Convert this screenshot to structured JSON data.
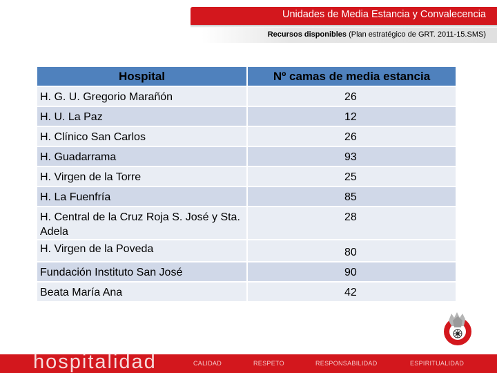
{
  "header": {
    "title": "Unidades de Media Estancia y Convalecencia",
    "subtitle_bold": "Recursos disponibles",
    "subtitle_rest": " (Plan estratégico de GRT. 2011-15.SMS)"
  },
  "table": {
    "col_hospital": "Hospital",
    "col_beds": "Nº camas de media estancia",
    "rows": [
      {
        "hospital": "H. G. U. Gregorio Marañón",
        "beds": "26"
      },
      {
        "hospital": "H. U. La Paz",
        "beds": "12"
      },
      {
        "hospital": "H. Clínico San Carlos",
        "beds": "26"
      },
      {
        "hospital": "H. Guadarrama",
        "beds": "93"
      },
      {
        "hospital": "H. Virgen de la Torre",
        "beds": "25"
      },
      {
        "hospital": "H. La Fuenfría",
        "beds": "85"
      },
      {
        "hospital": "H. Central de la Cruz Roja S. José y Sta. Adela",
        "beds": "28"
      },
      {
        "hospital": "H. Virgen de la Poveda",
        "beds": "80"
      },
      {
        "hospital": "Fundación Instituto San José",
        "beds": "90"
      },
      {
        "hospital": "Beata María Ana",
        "beds": "42"
      }
    ]
  },
  "footer": {
    "brand": "hospitalidad",
    "items": [
      "CALIDAD",
      "RESPETO",
      "RESPONSABILIDAD",
      "ESPIRITUALIDAD"
    ]
  },
  "colors": {
    "accent_red": "#d3171d",
    "table_header": "#4f81bd",
    "row_light": "#e9edf4",
    "row_dark": "#d0d8e8"
  },
  "icons": {
    "logo": "hospitaller-order-logo"
  }
}
